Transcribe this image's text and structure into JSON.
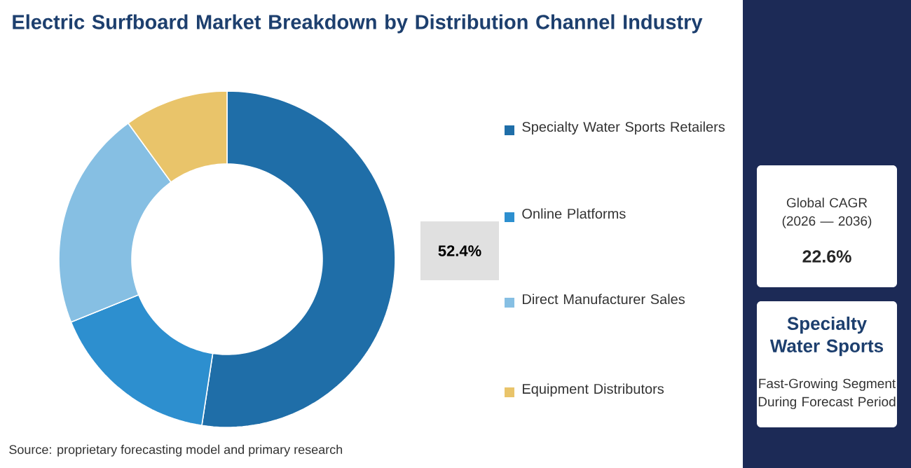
{
  "chart_data": {
    "type": "donut",
    "title": "Electric Surfboard Market Breakdown by Distribution Channel Industry",
    "categories": [
      "Specialty Water Sports Retailers",
      "Online Platforms",
      "Direct Manufacturer Sales",
      "Equipment Distributors"
    ],
    "values": [
      52.4,
      16.5,
      21.1,
      10.0
    ],
    "colors": [
      "#1f6ea8",
      "#2d8fcf",
      "#86bfe3",
      "#e9c46a"
    ],
    "value_labels": [
      "52.4%",
      null,
      null,
      null
    ],
    "legend": "right",
    "annotations": [
      "Source: proprietary forecasting model and primary research",
      "Global CAGR (2026 — 2036)",
      "22.6%",
      "Specialty Water Sports",
      "Fast-Growing Segment During Forecast Period"
    ]
  }
}
